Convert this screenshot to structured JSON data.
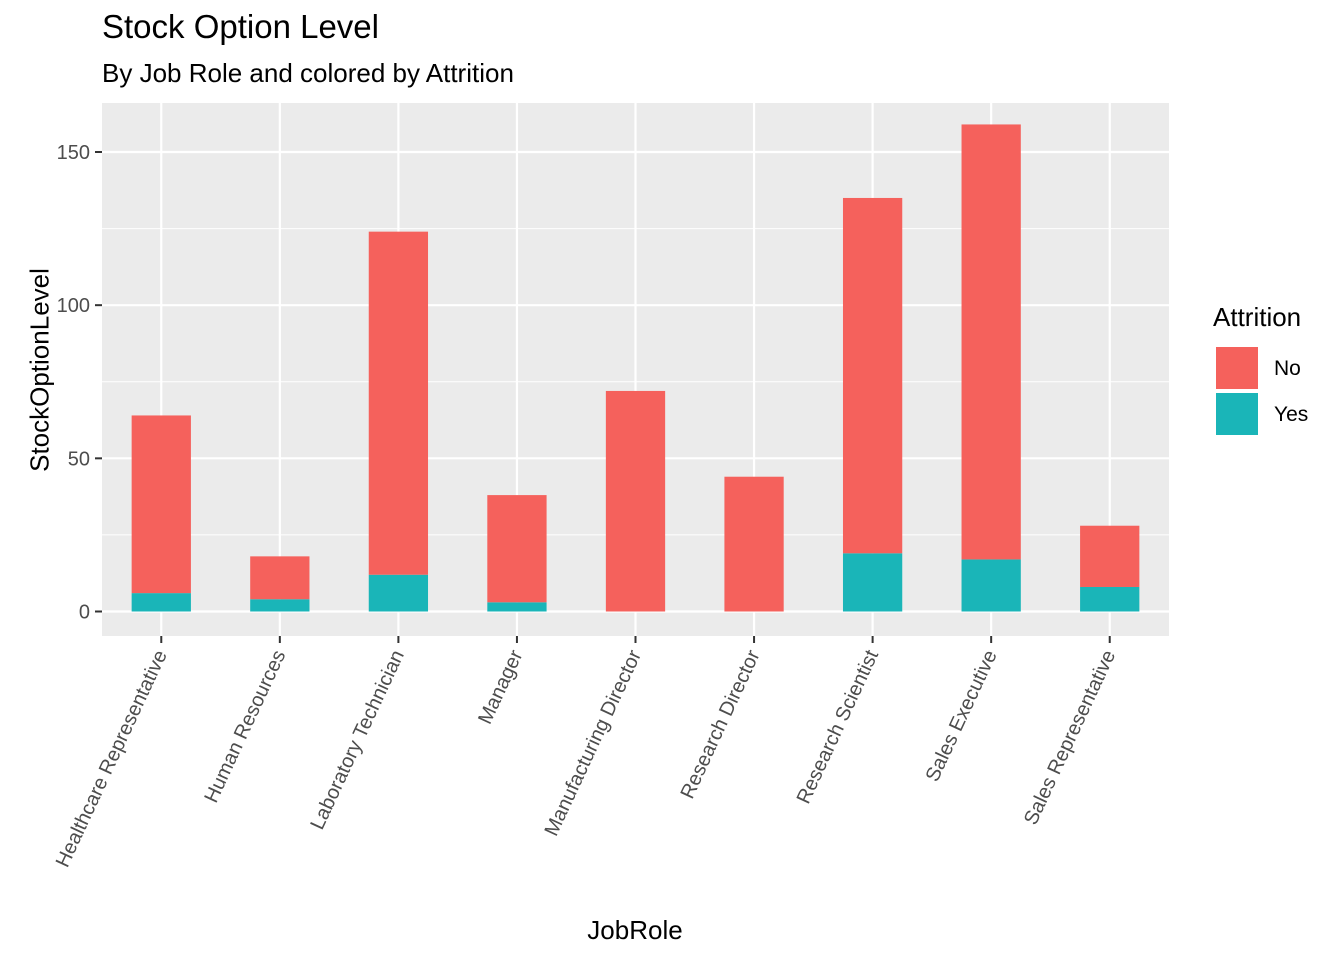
{
  "chart_data": {
    "type": "bar",
    "stacked": true,
    "title": "Stock Option Level",
    "subtitle": "By Job Role and colored by Attrition",
    "xlabel": "JobRole",
    "ylabel": "StockOptionLevel",
    "ylim": [
      -8,
      166
    ],
    "yticks": [
      0,
      50,
      100,
      150
    ],
    "grid": true,
    "legend": {
      "title": "Attrition",
      "position": "right",
      "items": [
        {
          "label": "No",
          "color": "#F8766D"
        },
        {
          "label": "Yes",
          "color": "#00BFC4"
        }
      ]
    },
    "categories": [
      "Healthcare Representative",
      "Human Resources",
      "Laboratory Technician",
      "Manager",
      "Manufacturing Director",
      "Research Director",
      "Research Scientist",
      "Sales Executive",
      "Sales Representative"
    ],
    "series": [
      {
        "name": "No",
        "color": "#F5615C",
        "values": [
          58,
          14,
          112,
          35,
          72,
          44,
          116,
          142,
          20
        ]
      },
      {
        "name": "Yes",
        "color": "#1AB5B8",
        "values": [
          6,
          4,
          12,
          3,
          0,
          0,
          19,
          17,
          8
        ]
      }
    ]
  }
}
